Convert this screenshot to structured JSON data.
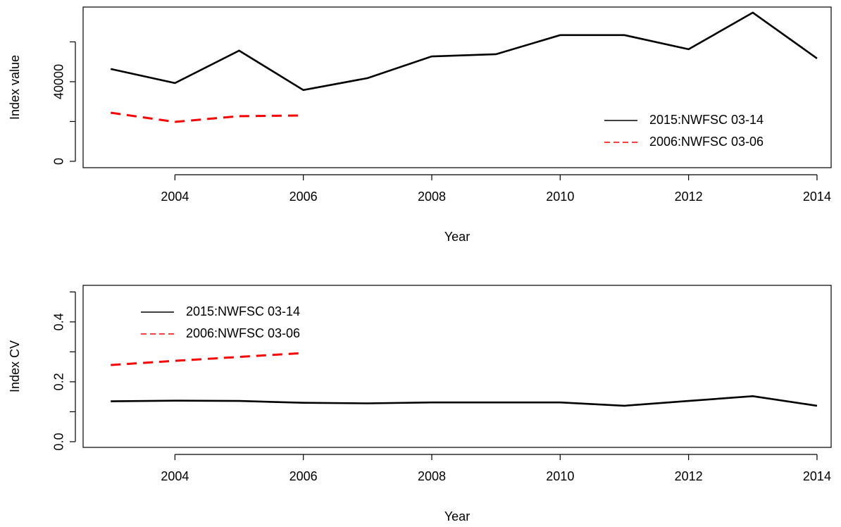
{
  "chart_data": [
    {
      "type": "line",
      "xlabel": "Year",
      "ylabel": "Index value",
      "x": [
        2003,
        2004,
        2005,
        2006,
        2007,
        2008,
        2009,
        2010,
        2011,
        2012,
        2013,
        2014
      ],
      "series": [
        {
          "name": "2015:NWFSC 03-14",
          "color": "#000000",
          "dash": "solid",
          "values": [
            46400,
            39300,
            55600,
            35800,
            41800,
            52700,
            53800,
            63400,
            63400,
            56300,
            74700,
            51700
          ]
        },
        {
          "name": "2006:NWFSC 03-06",
          "color": "#ff0000",
          "dash": "dashed",
          "values": [
            24400,
            19800,
            22700,
            23000,
            null,
            null,
            null,
            null,
            null,
            null,
            null,
            null
          ]
        }
      ],
      "xlim": [
        2002.57,
        2014.22
      ],
      "xticks": [
        2004,
        2006,
        2008,
        2010,
        2012,
        2014
      ],
      "ylim": [
        -3200,
        77500
      ],
      "yticks": [
        0,
        {
          "value": 20000,
          "label": null
        },
        40000,
        {
          "value": 60000,
          "label": null
        }
      ],
      "legend": "right"
    },
    {
      "type": "line",
      "xlabel": "Year",
      "ylabel": "Index CV",
      "x": [
        2003,
        2004,
        2005,
        2006,
        2007,
        2008,
        2009,
        2010,
        2011,
        2012,
        2013,
        2014
      ],
      "series": [
        {
          "name": "2015:NWFSC 03-14",
          "color": "#000000",
          "dash": "solid",
          "values": [
            0.135,
            0.137,
            0.136,
            0.13,
            0.128,
            0.131,
            0.131,
            0.131,
            0.12,
            0.136,
            0.152,
            0.12
          ]
        },
        {
          "name": "2006:NWFSC 03-06",
          "color": "#ff0000",
          "dash": "dashed",
          "values": [
            0.256,
            0.27,
            0.283,
            0.296,
            null,
            null,
            null,
            null,
            null,
            null,
            null,
            null
          ]
        }
      ],
      "xlim": [
        2002.57,
        2014.22
      ],
      "xticks": [
        2004,
        2006,
        2008,
        2010,
        2012,
        2014
      ],
      "ylim": [
        -0.019,
        0.522
      ],
      "yticks": [
        {
          "value": 0,
          "label": "0.0"
        },
        {
          "value": 0.1,
          "label": null
        },
        0.2,
        {
          "value": 0.3,
          "label": null
        },
        0.4,
        {
          "value": 0.5,
          "label": null
        }
      ],
      "legend": "topleft"
    }
  ]
}
